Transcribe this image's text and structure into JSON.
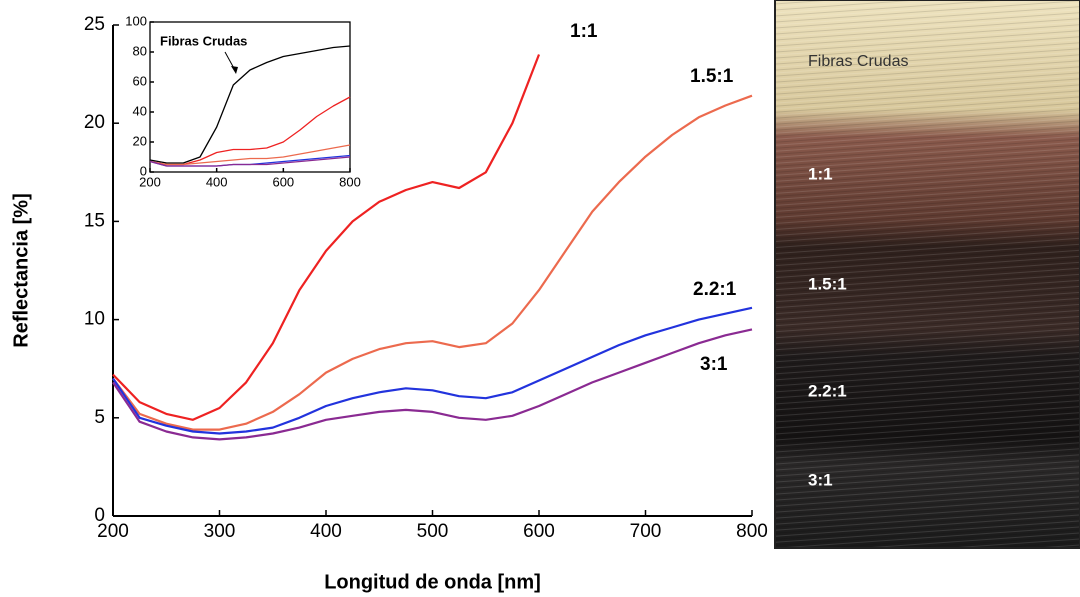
{
  "chart_data": [
    {
      "type": "line",
      "x_label": "Longitud de onda [nm]",
      "y_label": "Reflectancia [%]",
      "x": [
        200,
        225,
        250,
        275,
        300,
        325,
        350,
        375,
        400,
        425,
        450,
        475,
        500,
        525,
        550,
        575,
        600,
        625,
        650,
        675,
        700,
        725,
        750,
        775,
        800
      ],
      "xlim": [
        200,
        800
      ],
      "xticks": [
        200,
        300,
        400,
        500,
        600,
        700,
        800
      ],
      "ylim": [
        0,
        25
      ],
      "yticks": [
        0,
        5,
        10,
        15,
        20,
        25
      ],
      "series": [
        {
          "name": "1:1",
          "color": "#ee2222",
          "values": [
            7.2,
            5.8,
            5.2,
            4.9,
            5.5,
            6.8,
            8.8,
            11.5,
            13.5,
            15,
            16,
            16.6,
            17,
            16.7,
            17.5,
            20,
            23.5,
            null,
            null,
            null,
            null,
            null,
            null,
            null,
            null
          ]
        },
        {
          "name": "1.5:1",
          "color": "#ec6a4e",
          "values": [
            7,
            5.2,
            4.7,
            4.4,
            4.4,
            4.7,
            5.3,
            6.2,
            7.3,
            8,
            8.5,
            8.8,
            8.9,
            8.6,
            8.8,
            9.8,
            11.5,
            13.5,
            15.5,
            17,
            18.3,
            19.4,
            20.3,
            20.9,
            21.4
          ]
        },
        {
          "name": "2.2:1",
          "color": "#2233dd",
          "values": [
            7,
            5,
            4.6,
            4.3,
            4.2,
            4.3,
            4.5,
            5,
            5.6,
            6,
            6.3,
            6.5,
            6.4,
            6.1,
            6,
            6.3,
            6.9,
            7.5,
            8.1,
            8.7,
            9.2,
            9.6,
            10,
            10.3,
            10.6
          ]
        },
        {
          "name": "3:1",
          "color": "#8a2a92",
          "values": [
            6.8,
            4.8,
            4.3,
            4,
            3.9,
            4,
            4.2,
            4.5,
            4.9,
            5.1,
            5.3,
            5.4,
            5.3,
            5,
            4.9,
            5.1,
            5.6,
            6.2,
            6.8,
            7.3,
            7.8,
            8.3,
            8.8,
            9.2,
            9.5
          ]
        }
      ]
    },
    {
      "type": "line",
      "x": [
        200,
        250,
        300,
        350,
        400,
        450,
        500,
        550,
        600,
        650,
        700,
        750,
        800
      ],
      "xlim": [
        200,
        800
      ],
      "xticks": [
        200,
        400,
        600,
        800
      ],
      "ylim": [
        0,
        100
      ],
      "yticks": [
        0,
        20,
        40,
        60,
        80,
        100
      ],
      "series": [
        {
          "name": "Fibras Crudas",
          "color": "#000000",
          "values": [
            8,
            6,
            6,
            10,
            30,
            58,
            68,
            73,
            77,
            79,
            81,
            83,
            84
          ]
        },
        {
          "color": "#ee2222",
          "values": [
            7,
            5,
            5,
            8,
            13,
            15,
            15,
            16,
            20,
            28,
            37,
            44,
            50
          ]
        },
        {
          "color": "#ec6a4e",
          "values": [
            7,
            5,
            5,
            6,
            7,
            8,
            9,
            9,
            10,
            12,
            14,
            16,
            18
          ]
        },
        {
          "color": "#2233dd",
          "values": [
            7,
            4,
            4,
            4,
            4,
            5,
            5,
            6,
            7,
            8,
            9,
            10,
            11
          ]
        },
        {
          "color": "#8a2a92",
          "values": [
            7,
            4,
            4,
            4,
            4,
            5,
            5,
            5,
            6,
            7,
            8,
            9,
            10
          ]
        }
      ]
    }
  ],
  "photo": {
    "labels": [
      "Fibras Crudas",
      "1:1",
      "1.5:1",
      "2.2:1",
      "3:1"
    ]
  }
}
